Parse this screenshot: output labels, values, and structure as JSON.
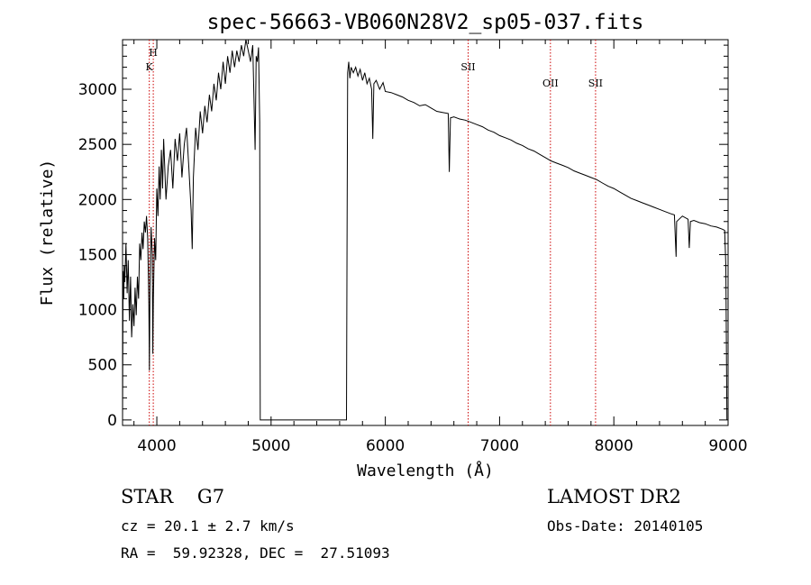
{
  "chart_data": {
    "type": "line",
    "title": "spec-56663-VB060N28V2_sp05-037.fits",
    "xlabel": "Wavelength (Å)",
    "ylabel": "Flux (relative)",
    "xlim": [
      3700,
      9000
    ],
    "ylim": [
      -50,
      3450
    ],
    "xticks": [
      4000,
      5000,
      6000,
      7000,
      8000,
      9000
    ],
    "yticks": [
      0,
      500,
      1000,
      1500,
      2000,
      2500,
      3000
    ],
    "grid": false,
    "series": [
      {
        "color": "#000000",
        "points": [
          [
            3700,
            0
          ],
          [
            3705,
            1350
          ],
          [
            3710,
            1100
          ],
          [
            3715,
            1400
          ],
          [
            3720,
            1250
          ],
          [
            3730,
            1600
          ],
          [
            3740,
            1150
          ],
          [
            3750,
            1450
          ],
          [
            3760,
            900
          ],
          [
            3770,
            1300
          ],
          [
            3780,
            750
          ],
          [
            3790,
            1050
          ],
          [
            3800,
            850
          ],
          [
            3810,
            1200
          ],
          [
            3820,
            950
          ],
          [
            3830,
            1300
          ],
          [
            3840,
            1100
          ],
          [
            3850,
            1600
          ],
          [
            3860,
            1450
          ],
          [
            3870,
            1700
          ],
          [
            3880,
            1550
          ],
          [
            3890,
            1800
          ],
          [
            3900,
            1700
          ],
          [
            3910,
            1850
          ],
          [
            3920,
            1650
          ],
          [
            3930,
            1050
          ],
          [
            3935,
            450
          ],
          [
            3940,
            1200
          ],
          [
            3950,
            1750
          ],
          [
            3960,
            1500
          ],
          [
            3965,
            600
          ],
          [
            3970,
            1100
          ],
          [
            3980,
            1650
          ],
          [
            3990,
            1450
          ],
          [
            4000,
            2100
          ],
          [
            4010,
            1850
          ],
          [
            4020,
            2300
          ],
          [
            4030,
            2000
          ],
          [
            4040,
            2450
          ],
          [
            4050,
            2100
          ],
          [
            4060,
            2550
          ],
          [
            4080,
            2000
          ],
          [
            4100,
            2300
          ],
          [
            4120,
            2450
          ],
          [
            4140,
            2100
          ],
          [
            4160,
            2550
          ],
          [
            4180,
            2350
          ],
          [
            4200,
            2600
          ],
          [
            4220,
            2200
          ],
          [
            4240,
            2500
          ],
          [
            4260,
            2650
          ],
          [
            4280,
            2300
          ],
          [
            4300,
            1900
          ],
          [
            4310,
            1550
          ],
          [
            4320,
            2200
          ],
          [
            4340,
            2650
          ],
          [
            4360,
            2450
          ],
          [
            4380,
            2800
          ],
          [
            4400,
            2600
          ],
          [
            4420,
            2850
          ],
          [
            4440,
            2700
          ],
          [
            4460,
            2950
          ],
          [
            4480,
            2800
          ],
          [
            4500,
            3050
          ],
          [
            4520,
            2900
          ],
          [
            4540,
            3150
          ],
          [
            4560,
            3000
          ],
          [
            4580,
            3250
          ],
          [
            4600,
            3050
          ],
          [
            4620,
            3300
          ],
          [
            4640,
            3150
          ],
          [
            4660,
            3350
          ],
          [
            4680,
            3200
          ],
          [
            4700,
            3350
          ],
          [
            4720,
            3250
          ],
          [
            4740,
            3400
          ],
          [
            4760,
            3300
          ],
          [
            4780,
            3450
          ],
          [
            4800,
            3350
          ],
          [
            4820,
            3250
          ],
          [
            4840,
            3400
          ],
          [
            4860,
            2450
          ],
          [
            4870,
            3300
          ],
          [
            4880,
            3250
          ],
          [
            4890,
            3380
          ],
          [
            4900,
            2700
          ],
          [
            4905,
            0
          ],
          [
            5660,
            0
          ],
          [
            5665,
            1550
          ],
          [
            5670,
            3150
          ],
          [
            5680,
            3250
          ],
          [
            5690,
            3100
          ],
          [
            5700,
            3200
          ],
          [
            5720,
            3150
          ],
          [
            5740,
            3200
          ],
          [
            5760,
            3120
          ],
          [
            5780,
            3180
          ],
          [
            5800,
            3080
          ],
          [
            5820,
            3150
          ],
          [
            5840,
            3050
          ],
          [
            5860,
            3100
          ],
          [
            5880,
            3000
          ],
          [
            5890,
            2550
          ],
          [
            5900,
            3050
          ],
          [
            5920,
            3080
          ],
          [
            5950,
            3000
          ],
          [
            5980,
            3060
          ],
          [
            6000,
            2980
          ],
          [
            6050,
            2970
          ],
          [
            6100,
            2950
          ],
          [
            6150,
            2930
          ],
          [
            6200,
            2900
          ],
          [
            6250,
            2880
          ],
          [
            6300,
            2850
          ],
          [
            6350,
            2860
          ],
          [
            6400,
            2830
          ],
          [
            6450,
            2800
          ],
          [
            6500,
            2790
          ],
          [
            6550,
            2780
          ],
          [
            6560,
            2250
          ],
          [
            6570,
            2740
          ],
          [
            6600,
            2750
          ],
          [
            6650,
            2730
          ],
          [
            6700,
            2720
          ],
          [
            6750,
            2700
          ],
          [
            6800,
            2680
          ],
          [
            6850,
            2660
          ],
          [
            6900,
            2630
          ],
          [
            6950,
            2610
          ],
          [
            7000,
            2580
          ],
          [
            7050,
            2560
          ],
          [
            7100,
            2540
          ],
          [
            7150,
            2510
          ],
          [
            7200,
            2490
          ],
          [
            7250,
            2460
          ],
          [
            7300,
            2440
          ],
          [
            7350,
            2410
          ],
          [
            7400,
            2380
          ],
          [
            7450,
            2350
          ],
          [
            7500,
            2330
          ],
          [
            7550,
            2310
          ],
          [
            7600,
            2290
          ],
          [
            7650,
            2260
          ],
          [
            7700,
            2240
          ],
          [
            7750,
            2220
          ],
          [
            7800,
            2200
          ],
          [
            7850,
            2180
          ],
          [
            7900,
            2150
          ],
          [
            7950,
            2120
          ],
          [
            8000,
            2100
          ],
          [
            8050,
            2070
          ],
          [
            8100,
            2040
          ],
          [
            8150,
            2010
          ],
          [
            8200,
            1990
          ],
          [
            8250,
            1970
          ],
          [
            8300,
            1950
          ],
          [
            8350,
            1930
          ],
          [
            8400,
            1910
          ],
          [
            8450,
            1890
          ],
          [
            8500,
            1870
          ],
          [
            8530,
            1860
          ],
          [
            8540,
            1600
          ],
          [
            8545,
            1480
          ],
          [
            8550,
            1800
          ],
          [
            8600,
            1850
          ],
          [
            8650,
            1820
          ],
          [
            8660,
            1560
          ],
          [
            8670,
            1800
          ],
          [
            8700,
            1810
          ],
          [
            8750,
            1790
          ],
          [
            8800,
            1780
          ],
          [
            8850,
            1760
          ],
          [
            8900,
            1750
          ],
          [
            8950,
            1730
          ],
          [
            8970,
            1720
          ],
          [
            8980,
            1400
          ],
          [
            8990,
            0
          ]
        ]
      }
    ],
    "lines": [
      {
        "wavelength": 3934,
        "label": "K",
        "color": "#cc0000"
      },
      {
        "wavelength": 3969,
        "label": "H",
        "color": "#cc0000"
      },
      {
        "wavelength": 6725,
        "label": "SII",
        "color": "#cc0000"
      },
      {
        "wavelength": 7445,
        "label": "OII",
        "color": "#cc0000"
      },
      {
        "wavelength": 7840,
        "label": "SII",
        "color": "#cc0000"
      }
    ]
  },
  "info": {
    "class_line": "STAR    G7",
    "survey": "LAMOST DR2",
    "redshift": "cz = 20.1 ± 2.7 km/s",
    "obs_date": "Obs-Date: 20140105",
    "coords": "RA =  59.92328, DEC =  27.51093"
  }
}
